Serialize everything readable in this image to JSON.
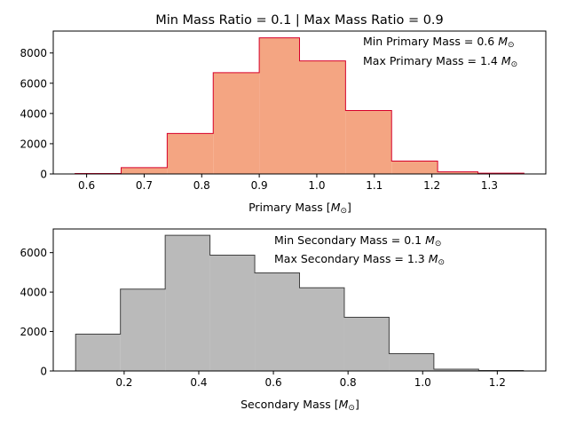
{
  "chart_data": [
    {
      "type": "bar",
      "title": "Min Mass Ratio = 0.1 | Max Mass Ratio = 0.9",
      "xlabel_text": "Primary Mass [",
      "xlabel_unit": "M",
      "xlabel_sub": "⊙",
      "xlabel_end": "]",
      "annotations": [
        {
          "prefix": "Min Primary Mass = 0.6 ",
          "unit": "M",
          "sub": "⊙"
        },
        {
          "prefix": "Max Primary Mass = 1.4 ",
          "unit": "M",
          "sub": "⊙"
        }
      ],
      "bin_edges": [
        0.58,
        0.66,
        0.74,
        0.82,
        0.9,
        0.97,
        1.05,
        1.13,
        1.21,
        1.28,
        1.36
      ],
      "counts": [
        30,
        420,
        2680,
        6700,
        9000,
        7480,
        4200,
        850,
        140,
        50
      ],
      "xlim": [
        0.542,
        1.398
      ],
      "ylim": [
        0,
        9450
      ],
      "xticks": [
        0.6,
        0.7,
        0.8,
        0.9,
        1.0,
        1.1,
        1.2,
        1.3
      ],
      "xtick_labels": [
        "0.6",
        "0.7",
        "0.8",
        "0.9",
        "1.0",
        "1.1",
        "1.2",
        "1.3"
      ],
      "yticks": [
        0,
        2000,
        4000,
        6000,
        8000
      ],
      "ytick_labels": [
        "0",
        "2000",
        "4000",
        "6000",
        "8000"
      ],
      "fill_color": "#f4a582",
      "edge_color": "#d6002a",
      "grid": false,
      "legend": "none"
    },
    {
      "type": "bar",
      "title": "",
      "xlabel_text": "Secondary Mass [",
      "xlabel_unit": "M",
      "xlabel_sub": "⊙",
      "xlabel_end": "]",
      "annotations": [
        {
          "prefix": "Min Secondary Mass = 0.1 ",
          "unit": "M",
          "sub": "⊙"
        },
        {
          "prefix": "Max Secondary Mass = 1.3 ",
          "unit": "M",
          "sub": "⊙"
        }
      ],
      "bin_edges": [
        0.07,
        0.19,
        0.31,
        0.43,
        0.55,
        0.67,
        0.79,
        0.91,
        1.03,
        1.15,
        1.27
      ],
      "counts": [
        1870,
        4150,
        6880,
        5870,
        4970,
        4220,
        2720,
        880,
        90,
        20
      ],
      "xlim": [
        0.01,
        1.33
      ],
      "ylim": [
        0,
        7200
      ],
      "xticks": [
        0.2,
        0.4,
        0.6,
        0.8,
        1.0,
        1.2
      ],
      "xtick_labels": [
        "0.2",
        "0.4",
        "0.6",
        "0.8",
        "1.0",
        "1.2"
      ],
      "yticks": [
        0,
        2000,
        4000,
        6000
      ],
      "ytick_labels": [
        "0",
        "2000",
        "4000",
        "6000"
      ],
      "fill_color": "#bababa",
      "edge_color": "#404040",
      "grid": false,
      "legend": "none"
    }
  ]
}
